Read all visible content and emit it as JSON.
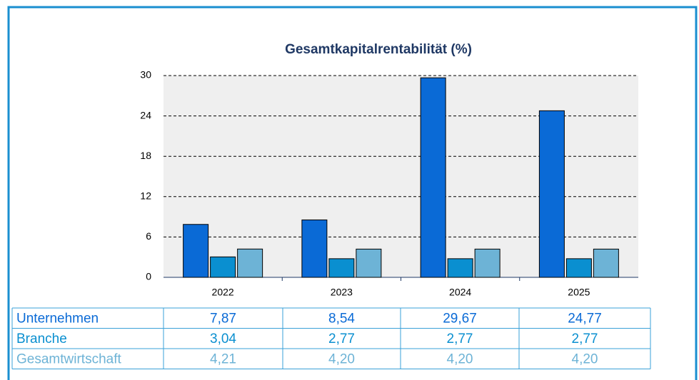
{
  "chart_data": {
    "type": "bar",
    "title": "Gesamtkapitalrentabilität (%)",
    "categories": [
      "2022",
      "2023",
      "2024",
      "2025"
    ],
    "series": [
      {
        "name": "Unternehmen",
        "color": "#0a6ad6",
        "values": [
          7.87,
          8.54,
          29.67,
          24.77
        ],
        "value_labels": [
          "7,87",
          "8,54",
          "29,67",
          "24,77"
        ]
      },
      {
        "name": "Branche",
        "color": "#0a8fd0",
        "values": [
          3.04,
          2.77,
          2.77,
          2.77
        ],
        "value_labels": [
          "3,04",
          "2,77",
          "2,77",
          "2,77"
        ]
      },
      {
        "name": "Gesamtwirtschaft",
        "color": "#6db3d6",
        "values": [
          4.21,
          4.2,
          4.2,
          4.2
        ],
        "value_labels": [
          "4,21",
          "4,20",
          "4,20",
          "4,20"
        ]
      }
    ],
    "ylim": [
      0,
      30
    ],
    "yticks": [
      0,
      6,
      12,
      18,
      24,
      30
    ],
    "grid": true
  }
}
